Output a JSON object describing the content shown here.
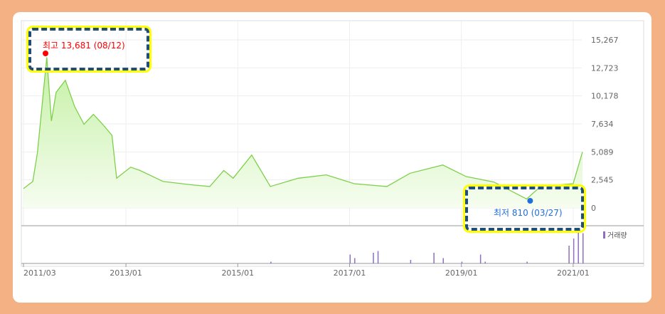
{
  "chart_data": {
    "type": "area",
    "title": "",
    "xlabel": "",
    "ylabel": "",
    "x_ticks": [
      "2011/03",
      "2013/01",
      "2015/01",
      "2017/01",
      "2019/01",
      "2021/01"
    ],
    "y_ticks": [
      0,
      2545,
      5089,
      7634,
      10178,
      12723,
      15267
    ],
    "y_tick_labels": [
      "0",
      "2,545",
      "5,089",
      "7,634",
      "10,178",
      "12,723",
      "15,267"
    ],
    "ylim": [
      0,
      15267
    ],
    "xlim": [
      "2011-03",
      "2021-03"
    ],
    "grid": true,
    "line_color": "#7ed04b",
    "fill_color": "#d9f7c4",
    "series": [
      {
        "points": [
          [
            "2011-03",
            1750
          ],
          [
            "2011-05",
            2400
          ],
          [
            "2011-06",
            5000
          ],
          [
            "2011-08",
            13681
          ],
          [
            "2011-09",
            7900
          ],
          [
            "2011-10",
            10500
          ],
          [
            "2011-12",
            11600
          ],
          [
            "2012-02",
            9200
          ],
          [
            "2012-04",
            7600
          ],
          [
            "2012-06",
            8500
          ],
          [
            "2012-08",
            7600
          ],
          [
            "2012-10",
            6600
          ],
          [
            "2012-11",
            2700
          ],
          [
            "2013-02",
            3700
          ],
          [
            "2013-04",
            3400
          ],
          [
            "2013-09",
            2400
          ],
          [
            "2014-03",
            2100
          ],
          [
            "2014-07",
            1950
          ],
          [
            "2014-10",
            3400
          ],
          [
            "2014-12",
            2700
          ],
          [
            "2015-04",
            4800
          ],
          [
            "2015-08",
            1950
          ],
          [
            "2016-02",
            2700
          ],
          [
            "2016-08",
            3000
          ],
          [
            "2017-02",
            2200
          ],
          [
            "2017-09",
            1950
          ],
          [
            "2018-02",
            3150
          ],
          [
            "2018-09",
            3900
          ],
          [
            "2019-02",
            2850
          ],
          [
            "2019-08",
            2350
          ],
          [
            "2020-03",
            810
          ],
          [
            "2020-06",
            1950
          ],
          [
            "2021-01",
            2200
          ],
          [
            "2021-03",
            5100
          ]
        ]
      }
    ],
    "volume": {
      "label": "거래량",
      "color": "#8e6fc1",
      "points": [
        [
          "2015-08",
          0.05
        ],
        [
          "2017-01",
          0.25
        ],
        [
          "2017-02",
          0.15
        ],
        [
          "2017-06",
          0.3
        ],
        [
          "2017-07",
          0.35
        ],
        [
          "2018-02",
          0.1
        ],
        [
          "2018-07",
          0.3
        ],
        [
          "2018-09",
          0.15
        ],
        [
          "2019-01",
          0.05
        ],
        [
          "2019-05",
          0.25
        ],
        [
          "2019-06",
          0.05
        ],
        [
          "2020-03",
          0.05
        ],
        [
          "2020-12",
          0.5
        ],
        [
          "2021-01",
          0.7
        ],
        [
          "2021-02",
          1.0
        ],
        [
          "2021-03",
          0.85
        ]
      ]
    },
    "annotations": {
      "high": {
        "label": "최고 13,681 (08/12)",
        "date": "2011-08",
        "value": 13681,
        "color": "#ff0000"
      },
      "low": {
        "label": "최저 810 (03/27)",
        "date": "2020-03",
        "value": 810,
        "color": "#1e6fd9"
      }
    }
  }
}
